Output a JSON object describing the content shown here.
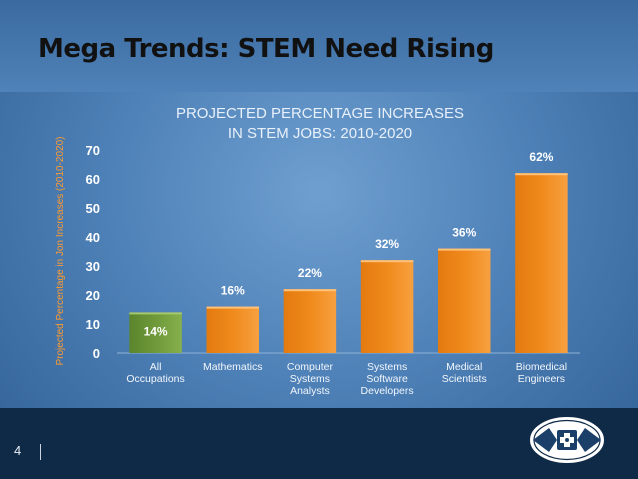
{
  "slide": {
    "title": "Mega Trends:  STEM Need Rising",
    "page_number": "4"
  },
  "colors": {
    "bar_orange": "#f08a1c",
    "bar_green": "#6f9a3a",
    "axis_label": "#ff9a2e"
  },
  "chart_data": {
    "type": "bar",
    "title_lines": [
      "PROJECTED PERCENTAGE INCREASES",
      "IN STEM JOBS: 2010-2020"
    ],
    "ylabel": "Projected Percentage in Jon Increases (2010-2020)",
    "xlabel": "",
    "ylim": [
      0,
      70
    ],
    "yticks": [
      0,
      10,
      20,
      30,
      40,
      50,
      60,
      70
    ],
    "categories": [
      [
        "All",
        "Occupations"
      ],
      [
        "Mathematics"
      ],
      [
        "Computer",
        "Systems",
        "Analysts"
      ],
      [
        "Systems",
        "Software",
        "Developers"
      ],
      [
        "Medical",
        "Scientists"
      ],
      [
        "Biomedical",
        "Engineers"
      ]
    ],
    "values": [
      14,
      16,
      22,
      32,
      36,
      62
    ],
    "data_labels": [
      "14%",
      "16%",
      "22%",
      "32%",
      "36%",
      "62%"
    ],
    "highlight_index": 0,
    "grid": false,
    "legend": "none"
  }
}
